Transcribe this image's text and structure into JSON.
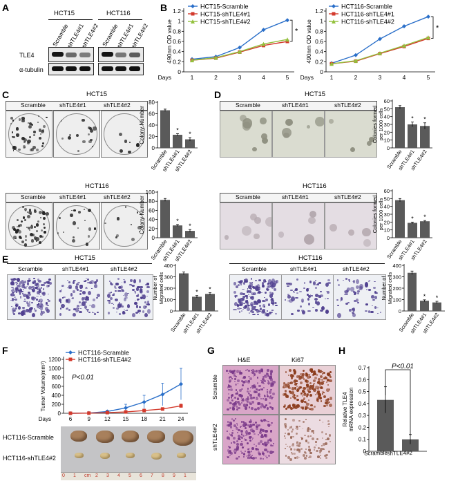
{
  "panels": {
    "A": {
      "label": "A",
      "cell_lines": [
        "HCT15",
        "HCT116"
      ],
      "lanes": [
        "Scramble",
        "shTLE4#1",
        "shTLE4#2"
      ],
      "proteins": [
        "TLE4",
        "α-tubulin"
      ]
    },
    "B": {
      "label": "B",
      "significance": "*"
    },
    "C": {
      "label": "C",
      "titles": [
        "HCT15",
        "HCT116"
      ],
      "groups": [
        "Scramble",
        "shTLE4#1",
        "shTLE4#2"
      ]
    },
    "D": {
      "label": "D",
      "titles": [
        "HCT15",
        "HCT116"
      ],
      "groups": [
        "Scramble",
        "shTLE4#1",
        "shTLE4#2"
      ]
    },
    "E": {
      "label": "E",
      "titles": [
        "HCT15",
        "HCT116"
      ],
      "groups": [
        "Scramble",
        "shTLE4#1",
        "shTLE4#2"
      ]
    },
    "F": {
      "label": "F",
      "pvalue": "P<0.01",
      "tumor_rows": [
        "HCT116-Scramble",
        "HCT116-shTLE4#2"
      ],
      "ruler": [
        "0",
        "1",
        "cm",
        "2",
        "3",
        "4",
        "5",
        "6",
        "7",
        "8",
        "9",
        "1"
      ]
    },
    "G": {
      "label": "G",
      "columns": [
        "H&E",
        "Ki67"
      ],
      "rows": [
        "Scramble",
        "shTLE4#2"
      ]
    },
    "H": {
      "label": "H",
      "pvalue": "P<0.01"
    }
  },
  "chart_data": [
    {
      "id": "B-left",
      "type": "line",
      "xlabel": "Days",
      "ylabel": "490nm OD value",
      "x": [
        1,
        2,
        3,
        4,
        5
      ],
      "ylim": [
        0,
        1.2
      ],
      "series": [
        {
          "name": "HCT15-Scramble",
          "color": "#2a6fc9",
          "marker": "diamond",
          "values": [
            0.25,
            0.3,
            0.48,
            0.83,
            1.02
          ]
        },
        {
          "name": "HCT15-shTLE4#1",
          "color": "#d33a2c",
          "marker": "square",
          "values": [
            0.23,
            0.27,
            0.39,
            0.52,
            0.6
          ]
        },
        {
          "name": "HCT15-shTLE4#2",
          "color": "#93c13d",
          "marker": "triangle",
          "values": [
            0.23,
            0.28,
            0.4,
            0.55,
            0.64
          ]
        }
      ]
    },
    {
      "id": "B-right",
      "type": "line",
      "xlabel": "Days",
      "ylabel": "490nm OD value",
      "x": [
        1,
        2,
        3,
        4,
        5
      ],
      "ylim": [
        0,
        1.2
      ],
      "series": [
        {
          "name": "HCT116-Scramble",
          "color": "#2a6fc9",
          "marker": "diamond",
          "values": [
            0.17,
            0.33,
            0.65,
            0.9,
            1.09
          ]
        },
        {
          "name": "HCT116-shTLE4#1",
          "color": "#d33a2c",
          "marker": "square",
          "values": [
            0.16,
            0.21,
            0.36,
            0.5,
            0.66
          ]
        },
        {
          "name": "HCT116-shTLE4#2",
          "color": "#93c13d",
          "marker": "triangle",
          "values": [
            0.16,
            0.22,
            0.37,
            0.52,
            0.68
          ]
        }
      ]
    },
    {
      "id": "C-top",
      "type": "bar",
      "ylabel": "Colony Number",
      "categories": [
        "Scramble",
        "shTLE4#1",
        "shTLE4#2"
      ],
      "values": [
        66,
        23,
        15
      ],
      "errors": [
        2,
        2,
        3
      ],
      "stars": [
        "",
        "*",
        "*"
      ],
      "ylim": [
        0,
        80
      ],
      "yticks": [
        0,
        20,
        40,
        60,
        80
      ]
    },
    {
      "id": "C-bottom",
      "type": "bar",
      "ylabel": "Colony Number",
      "categories": [
        "Scramble",
        "shTLE4#1",
        "shTLE4#2"
      ],
      "values": [
        83,
        27,
        15
      ],
      "errors": [
        3,
        2,
        3
      ],
      "stars": [
        "",
        "*",
        "*"
      ],
      "ylim": [
        0,
        100
      ],
      "yticks": [
        0,
        20,
        40,
        60,
        80,
        100
      ]
    },
    {
      "id": "D-top",
      "type": "bar",
      "ylabel": "Colonies formed per 1000 cells",
      "categories": [
        "Scramble",
        "shTLE4#1",
        "shTLE4#2"
      ],
      "values": [
        52,
        30,
        28
      ],
      "errors": [
        2,
        3,
        4
      ],
      "stars": [
        "",
        "*",
        "*"
      ],
      "ylim": [
        0,
        60
      ],
      "yticks": [
        0,
        10,
        20,
        30,
        40,
        50,
        60
      ]
    },
    {
      "id": "D-bottom",
      "type": "bar",
      "ylabel": "Colonies formed per 1000 cells",
      "categories": [
        "Scramble",
        "shTLE4#1",
        "shTLE4#2"
      ],
      "values": [
        48,
        19,
        21
      ],
      "errors": [
        2,
        1,
        1
      ],
      "stars": [
        "",
        "*",
        "*"
      ],
      "ylim": [
        0,
        60
      ],
      "yticks": [
        0,
        10,
        20,
        30,
        40,
        50,
        60
      ]
    },
    {
      "id": "E-left",
      "type": "bar",
      "ylabel": "Number of Migrated cells",
      "categories": [
        "Scramble",
        "shTLE4#1",
        "shTLE4#2"
      ],
      "values": [
        330,
        125,
        150
      ],
      "errors": [
        12,
        10,
        10
      ],
      "stars": [
        "",
        "*",
        "*"
      ],
      "ylim": [
        0,
        400
      ],
      "yticks": [
        0,
        100,
        200,
        300,
        400
      ]
    },
    {
      "id": "E-right",
      "type": "bar",
      "ylabel": "Number of Migrated cells",
      "categories": [
        "Scramble",
        "shTLE4#1",
        "shTLE4#2"
      ],
      "values": [
        335,
        90,
        75
      ],
      "errors": [
        15,
        8,
        10
      ],
      "stars": [
        "",
        "*",
        "*"
      ],
      "ylim": [
        0,
        400
      ],
      "yticks": [
        0,
        100,
        200,
        300,
        400
      ]
    },
    {
      "id": "F",
      "type": "line",
      "xlabel": "Days",
      "ylabel": "Tumor Volume(mm³)",
      "x": [
        6,
        9,
        12,
        15,
        18,
        21,
        24
      ],
      "ylim": [
        0,
        1200
      ],
      "yticks": [
        0,
        200,
        400,
        600,
        800,
        1000,
        1200
      ],
      "series": [
        {
          "name": "HCT116-Scramble",
          "color": "#2a6fc9",
          "marker": "diamond",
          "values": [
            0,
            5,
            40,
            120,
            250,
            420,
            650
          ],
          "errors": [
            0,
            5,
            30,
            80,
            150,
            250,
            350
          ]
        },
        {
          "name": "HCT116-shTLE4#2",
          "color": "#d33a2c",
          "marker": "square",
          "values": [
            0,
            3,
            15,
            30,
            60,
            95,
            165
          ],
          "errors": [
            0,
            3,
            8,
            12,
            20,
            30,
            40
          ]
        }
      ]
    },
    {
      "id": "H",
      "type": "bar",
      "ylabel": "Relative TLE4 mRNA expression",
      "categories": [
        "Scramble",
        "shTLE4#2"
      ],
      "values": [
        0.43,
        0.1
      ],
      "errors": [
        0.11,
        0.04
      ],
      "ylim": [
        0,
        0.7
      ],
      "yticks": [
        0,
        0.1,
        0.2,
        0.3,
        0.4,
        0.5,
        0.6,
        0.7
      ]
    }
  ]
}
